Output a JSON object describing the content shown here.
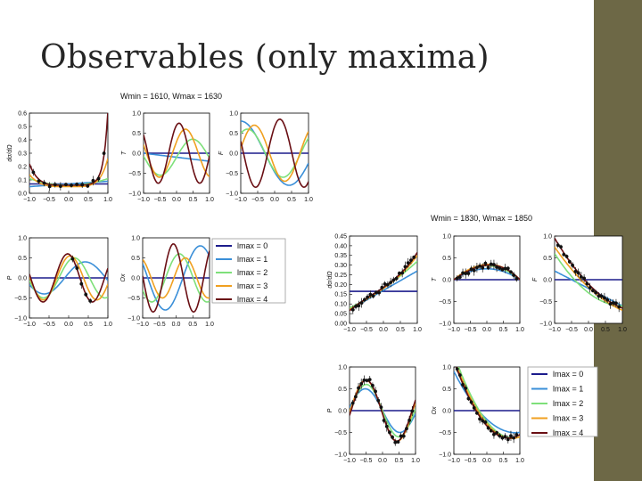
{
  "slide": {
    "title": "Observables (only maxima)",
    "sidebar_color": "#6d6846"
  },
  "legend": {
    "labels": [
      "lmax = 0",
      "lmax = 1",
      "lmax = 2",
      "lmax = 3",
      "lmax = 4"
    ],
    "colors": [
      "#1c1c8c",
      "#3a8fd8",
      "#7ee07a",
      "#f0a020",
      "#6a0f14"
    ]
  },
  "chart_data": [
    {
      "type": "line",
      "title": "Wmin = 1610, Wmax = 1630",
      "panels": [
        {
          "id": "dsig",
          "ylabel": "dσ/dΩ",
          "ylim": [
            0,
            0.6
          ],
          "yticks": [
            "0.0",
            "0.1",
            "0.2",
            "0.3",
            "0.4",
            "0.5",
            "0.6"
          ],
          "xticks": [
            "−1.0",
            "−0.5",
            "0.0",
            "0.5",
            "1.0"
          ],
          "data_points": true
        },
        {
          "id": "T",
          "ylabel": "T",
          "ylim": [
            -1,
            1
          ],
          "yticks": [
            "−1.0",
            "−0.5",
            "0.0",
            "0.5",
            "1.0"
          ],
          "xticks": [
            "−1.0",
            "−0.5",
            "0.0",
            "0.5",
            "1.0"
          ]
        },
        {
          "id": "F",
          "ylabel": "F",
          "ylim": [
            -1,
            1
          ],
          "yticks": [
            "−1.0",
            "−0.5",
            "0.0",
            "0.5",
            "1.0"
          ],
          "xticks": [
            "−1.0",
            "−0.5",
            "0.0",
            "0.5",
            "1.0"
          ]
        },
        {
          "id": "P",
          "ylabel": "P",
          "ylim": [
            -1,
            1
          ],
          "yticks": [
            "−1.0",
            "−0.5",
            "0.0",
            "0.5",
            "1.0"
          ],
          "xticks": [
            "−1.0",
            "−0.5",
            "0.0",
            "0.5",
            "1.0"
          ],
          "data_points": true
        },
        {
          "id": "Ox",
          "ylabel": "Ox",
          "ylim": [
            -1,
            1
          ],
          "yticks": [
            "−1.0",
            "−0.5",
            "0.0",
            "0.5",
            "1.0"
          ],
          "xticks": [
            "−1.0",
            "−0.5",
            "0.0",
            "0.5",
            "1.0"
          ]
        }
      ]
    },
    {
      "type": "line",
      "title": "Wmin = 1830, Wmax = 1850",
      "panels": [
        {
          "id": "dsig",
          "ylabel": "dσ/dΩ",
          "ylim": [
            0,
            0.45
          ],
          "yticks": [
            "0.00",
            "0.05",
            "0.10",
            "0.15",
            "0.20",
            "0.25",
            "0.30",
            "0.35",
            "0.40",
            "0.45"
          ],
          "xticks": [
            "−1.0",
            "−0.5",
            "0.0",
            "0.5",
            "1.0"
          ],
          "data_points": true
        },
        {
          "id": "T",
          "ylabel": "T",
          "ylim": [
            -1,
            1
          ],
          "yticks": [
            "−1.0",
            "−0.5",
            "0.0",
            "0.5",
            "1.0"
          ],
          "xticks": [
            "−1.0",
            "−0.5",
            "0.0",
            "0.5",
            "1.0"
          ],
          "data_points": true
        },
        {
          "id": "F",
          "ylabel": "F",
          "ylim": [
            -1,
            1
          ],
          "yticks": [
            "−1.0",
            "−0.5",
            "0.0",
            "0.5",
            "1.0"
          ],
          "xticks": [
            "−1.0",
            "−0.5",
            "0.0",
            "0.5",
            "1.0"
          ],
          "data_points": true
        },
        {
          "id": "P",
          "ylabel": "P",
          "ylim": [
            -1,
            1
          ],
          "yticks": [
            "−1.0",
            "−0.5",
            "0.0",
            "0.5",
            "1.0"
          ],
          "xticks": [
            "−1.0",
            "−0.5",
            "0.0",
            "0.5",
            "1.0"
          ],
          "data_points": true
        },
        {
          "id": "Ox",
          "ylabel": "Ox",
          "ylim": [
            -1,
            1
          ],
          "yticks": [
            "−1.0",
            "−0.5",
            "0.0",
            "0.5",
            "1.0"
          ],
          "xticks": [
            "−1.0",
            "−0.5",
            "0.0",
            "0.5",
            "1.0"
          ],
          "data_points": true
        }
      ]
    }
  ]
}
